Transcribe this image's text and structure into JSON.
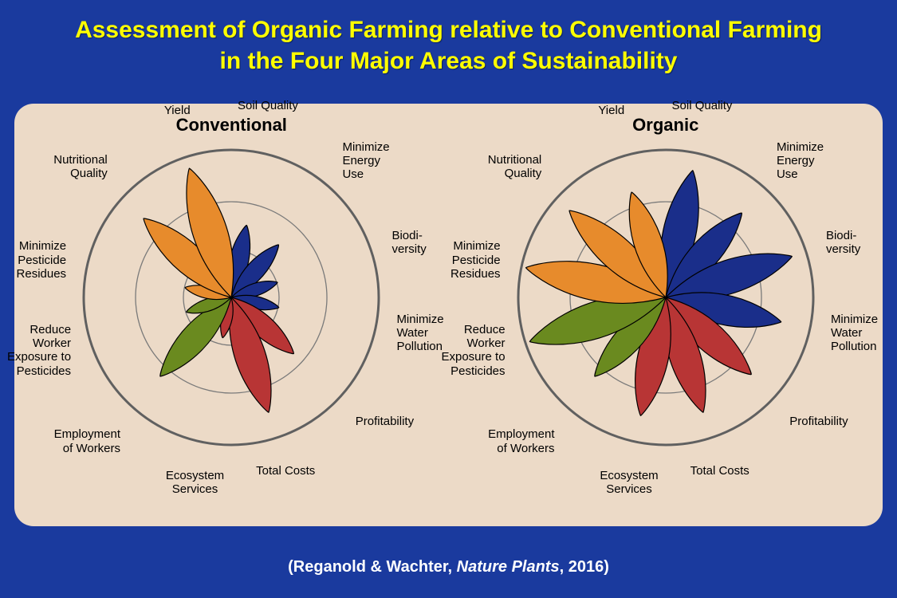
{
  "title_line1": "Assessment of Organic Farming relative to Conventional Farming",
  "title_line2": "in the Four Major Areas of Sustainability",
  "citation_prefix": "(Reganold & Wachter, ",
  "citation_journal": "Nature Plants",
  "citation_suffix": ", 2016)",
  "colors": {
    "page_bg": "#1a3a9e",
    "panel_bg": "#ecdac7",
    "title_text": "#ffff00",
    "ring_stroke": "#7a7a7a",
    "outer_ring_stroke": "#606060",
    "petal_stroke": "#000000",
    "label_text": "#000000"
  },
  "chart_geometry": {
    "outer_radius": 185,
    "inner_rings": [
      60,
      120,
      185
    ],
    "n_petals": 12,
    "petal_half_width_deg": 10,
    "label_radius": 220
  },
  "categories": [
    {
      "label": "Soil Quality",
      "angle_deg": 78,
      "color": "#1a2e8a"
    },
    {
      "label": "Minimize\nEnergy\nUse",
      "angle_deg": 48,
      "color": "#1a2e8a"
    },
    {
      "label": "Biodi-\nversity",
      "angle_deg": 18,
      "color": "#1a2e8a"
    },
    {
      "label": "Minimize\nWater\nPollution",
      "angle_deg": -12,
      "color": "#1a2e8a"
    },
    {
      "label": "Profitability",
      "angle_deg": -42,
      "color": "#b83535"
    },
    {
      "label": "Total Costs",
      "angle_deg": -72,
      "color": "#b83535"
    },
    {
      "label": "Ecosystem\nServices",
      "angle_deg": -102,
      "color": "#b83535"
    },
    {
      "label": "Employment\nof Workers",
      "angle_deg": -132,
      "color": "#6a8a1f"
    },
    {
      "label": "Reduce\nWorker\nExposure to\nPesticides",
      "angle_deg": -162,
      "color": "#6a8a1f"
    },
    {
      "label": "Minimize\nPesticide\nResidues",
      "angle_deg": 168,
      "color": "#e78b2c"
    },
    {
      "label": "Nutritional\nQuality",
      "angle_deg": 138,
      "color": "#e78b2c"
    },
    {
      "label": "Yield",
      "angle_deg": 108,
      "color": "#e78b2c"
    }
  ],
  "charts": [
    {
      "title": "Conventional",
      "values": [
        0.5,
        0.48,
        0.33,
        0.33,
        0.57,
        0.82,
        0.28,
        0.72,
        0.32,
        0.32,
        0.8,
        0.92
      ]
    },
    {
      "title": "Organic",
      "values": [
        0.88,
        0.77,
        0.9,
        0.8,
        0.78,
        0.82,
        0.82,
        0.72,
        0.97,
        0.97,
        0.88,
        0.75
      ]
    }
  ]
}
